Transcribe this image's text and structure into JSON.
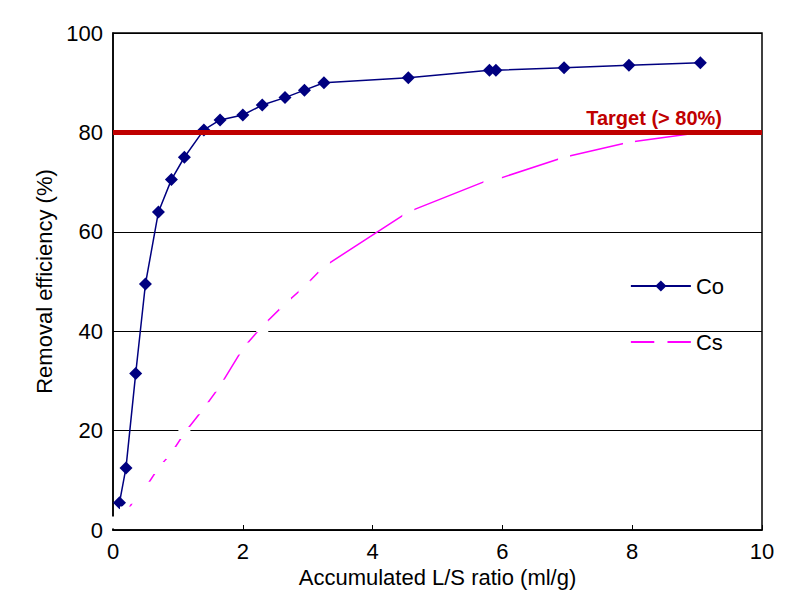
{
  "chart_data": {
    "type": "line",
    "x_label": "Accumulated L/S ratio (ml/g)",
    "y_label": "Removal efficiency (%)",
    "xlim": [
      0,
      10
    ],
    "xticks": [
      0,
      2,
      4,
      6,
      8,
      10
    ],
    "ylim": [
      0,
      100
    ],
    "yticks": [
      0,
      20,
      40,
      60,
      80,
      100
    ],
    "grid": true,
    "legend": "right",
    "annotations": [
      {
        "text": "Target (> 80%)",
        "y": 80,
        "color": "#c00000"
      }
    ],
    "series": [
      {
        "name": "Co",
        "color": "#000080",
        "marker": "diamond",
        "x": [
          0.1,
          0.2,
          0.35,
          0.5,
          0.7,
          0.9,
          1.1,
          1.4,
          1.65,
          2.0,
          2.3,
          2.65,
          2.95,
          3.25,
          4.55,
          5.8,
          5.9,
          6.95,
          7.95,
          9.05
        ],
        "values": [
          5.5,
          12.5,
          31.5,
          49.5,
          64,
          70.5,
          75,
          80.5,
          82.5,
          83.5,
          85.5,
          87,
          88.5,
          90,
          91,
          92.5,
          92.5,
          93,
          93.5,
          94
        ]
      },
      {
        "name": "Cs",
        "color": "#ff00ff",
        "marker": "open_square",
        "x": [
          0.06,
          0.2,
          0.35,
          0.5,
          0.7,
          0.9,
          1.1,
          1.4,
          1.65,
          2.0,
          2.3,
          2.65,
          2.95,
          3.25,
          4.55,
          5.8,
          5.9,
          6.95,
          7.95,
          9.05
        ],
        "values": [
          1.5,
          3.5,
          6.5,
          8.5,
          12.5,
          15.5,
          19.5,
          24.5,
          29,
          36.5,
          41,
          45.5,
          49,
          53,
          64,
          70.5,
          70.5,
          75,
          78,
          80
        ]
      }
    ]
  }
}
